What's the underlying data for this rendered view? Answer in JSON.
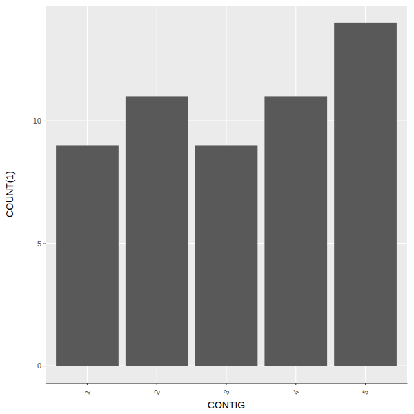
{
  "chart_data": {
    "type": "bar",
    "x_label": "CONTIG",
    "y_label": "COUNT(1)",
    "categories": [
      "1",
      "2",
      "3",
      "4",
      "5"
    ],
    "values": [
      9,
      11,
      9,
      11,
      14
    ],
    "color": "#595959",
    "ylim": [
      -0.7,
      14.7
    ],
    "yticks": [
      0,
      5,
      10
    ],
    "grid": true
  }
}
